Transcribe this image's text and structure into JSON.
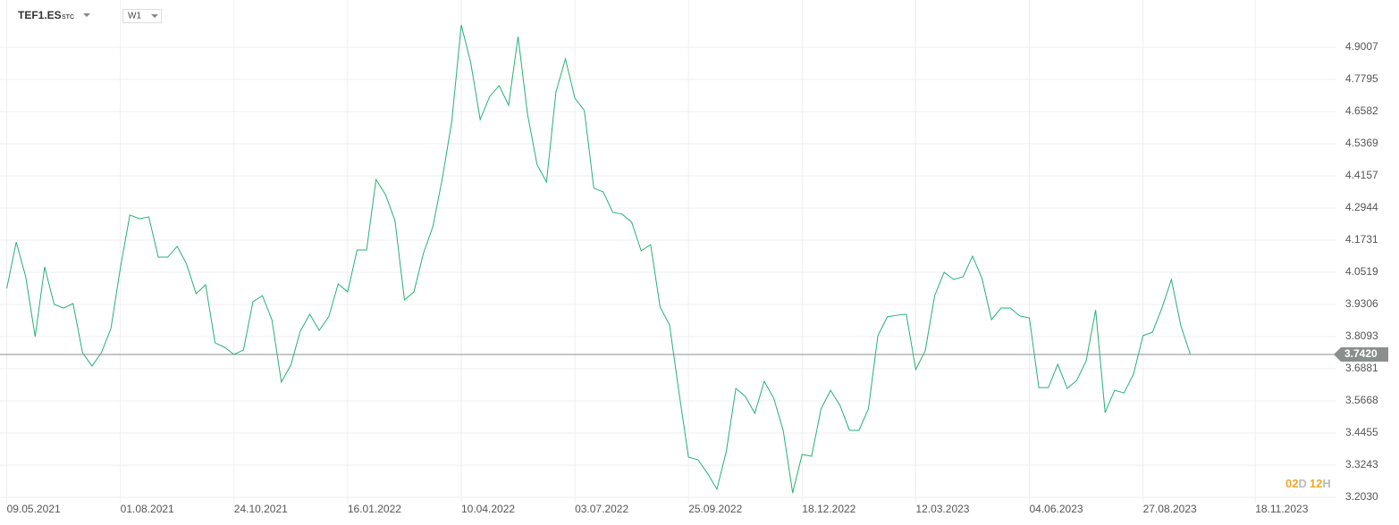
{
  "toolbar": {
    "symbol": "TEF1.ES",
    "symbol_type": "STC",
    "interval": "W1"
  },
  "countdown": {
    "days": "02",
    "days_unit": "D",
    "hours": "12",
    "hours_unit": "H"
  },
  "chart_data": {
    "type": "line",
    "color": "#26b07a",
    "grid": true,
    "x": [
      "09.05.2021",
      "16.05.2021",
      "23.05.2021",
      "30.05.2021",
      "06.06.2021",
      "13.06.2021",
      "20.06.2021",
      "27.06.2021",
      "04.07.2021",
      "11.07.2021",
      "18.07.2021",
      "25.07.2021",
      "01.08.2021",
      "08.08.2021",
      "15.08.2021",
      "22.08.2021",
      "29.08.2021",
      "05.09.2021",
      "12.09.2021",
      "19.09.2021",
      "26.09.2021",
      "03.10.2021",
      "10.10.2021",
      "17.10.2021",
      "24.10.2021",
      "31.10.2021",
      "07.11.2021",
      "14.11.2021",
      "21.11.2021",
      "28.11.2021",
      "05.12.2021",
      "12.12.2021",
      "19.12.2021",
      "26.12.2021",
      "02.01.2022",
      "09.01.2022",
      "16.01.2022",
      "23.01.2022",
      "30.01.2022",
      "06.02.2022",
      "13.02.2022",
      "20.02.2022",
      "27.02.2022",
      "06.03.2022",
      "13.03.2022",
      "20.03.2022",
      "27.03.2022",
      "03.04.2022",
      "10.04.2022",
      "17.04.2022",
      "24.04.2022",
      "01.05.2022",
      "08.05.2022",
      "15.05.2022",
      "22.05.2022",
      "29.05.2022",
      "05.06.2022",
      "12.06.2022",
      "19.06.2022",
      "26.06.2022",
      "03.07.2022",
      "10.07.2022",
      "17.07.2022",
      "24.07.2022",
      "31.07.2022",
      "07.08.2022",
      "14.08.2022",
      "21.08.2022",
      "28.08.2022",
      "04.09.2022",
      "11.09.2022",
      "18.09.2022",
      "25.09.2022",
      "02.10.2022",
      "09.10.2022",
      "16.10.2022",
      "23.10.2022",
      "30.10.2022",
      "06.11.2022",
      "13.11.2022",
      "20.11.2022",
      "27.11.2022",
      "04.12.2022",
      "11.12.2022",
      "18.12.2022",
      "25.12.2022",
      "01.01.2023",
      "08.01.2023",
      "15.01.2023",
      "22.01.2023",
      "29.01.2023",
      "05.02.2023",
      "12.02.2023",
      "19.02.2023",
      "26.02.2023",
      "05.03.2023",
      "12.03.2023",
      "19.03.2023",
      "26.03.2023",
      "02.04.2023",
      "09.04.2023",
      "16.04.2023",
      "23.04.2023",
      "30.04.2023",
      "07.05.2023",
      "14.05.2023",
      "21.05.2023",
      "28.05.2023",
      "04.06.2023",
      "11.06.2023",
      "18.06.2023",
      "25.06.2023",
      "02.07.2023",
      "09.07.2023",
      "16.07.2023",
      "23.07.2023",
      "30.07.2023",
      "06.08.2023",
      "13.08.2023",
      "20.08.2023",
      "27.08.2023",
      "03.09.2023",
      "10.09.2023",
      "17.09.2023",
      "24.09.2023",
      "01.10.2023"
    ],
    "values": [
      3.991,
      4.166,
      4.035,
      3.809,
      4.072,
      3.931,
      3.917,
      3.934,
      3.749,
      3.698,
      3.749,
      3.84,
      4.069,
      4.268,
      4.254,
      4.261,
      4.109,
      4.109,
      4.15,
      4.082,
      3.971,
      4.005,
      3.786,
      3.769,
      3.742,
      3.759,
      3.941,
      3.964,
      3.873,
      3.638,
      3.702,
      3.83,
      3.894,
      3.833,
      3.884,
      4.008,
      3.978,
      4.136,
      4.136,
      4.402,
      4.345,
      4.247,
      3.948,
      3.978,
      4.123,
      4.224,
      4.406,
      4.621,
      4.985,
      4.843,
      4.628,
      4.715,
      4.756,
      4.682,
      4.941,
      4.648,
      4.459,
      4.392,
      4.732,
      4.857,
      4.709,
      4.662,
      4.369,
      4.355,
      4.278,
      4.271,
      4.241,
      4.133,
      4.156,
      3.921,
      3.853,
      3.597,
      3.355,
      3.345,
      3.294,
      3.234,
      3.378,
      3.614,
      3.584,
      3.52,
      3.641,
      3.577,
      3.456,
      3.22,
      3.365,
      3.358,
      3.537,
      3.607,
      3.55,
      3.456,
      3.456,
      3.537,
      3.813,
      3.884,
      3.89,
      3.894,
      3.685,
      3.756,
      3.964,
      4.052,
      4.025,
      4.035,
      4.113,
      4.028,
      3.873,
      3.917,
      3.917,
      3.887,
      3.88,
      3.617,
      3.617,
      3.705,
      3.614,
      3.644,
      3.718,
      3.91,
      3.523,
      3.607,
      3.597,
      3.668,
      3.813,
      3.826,
      3.917,
      4.025,
      3.85,
      3.742
    ],
    "last_price": {
      "value": 3.742,
      "label": "3.7420"
    },
    "xlim": [
      "04.05.2021",
      "17.01.2024"
    ],
    "xticks": [
      "09.05.2021",
      "01.08.2021",
      "24.10.2021",
      "16.01.2022",
      "10.04.2022",
      "03.07.2022",
      "25.09.2022",
      "18.12.2022",
      "12.03.2023",
      "04.06.2023",
      "27.08.2023",
      "18.11.2023"
    ],
    "ylim": [
      3.183,
      5.079
    ],
    "yticks": [
      {
        "value": 3.203,
        "label": "3.2030"
      },
      3.3243,
      3.4455,
      3.5668,
      3.6881,
      3.8093,
      3.9306,
      4.0519,
      4.1731,
      4.2944,
      4.4157,
      4.5369,
      4.6582,
      4.7795,
      4.9007
    ]
  }
}
